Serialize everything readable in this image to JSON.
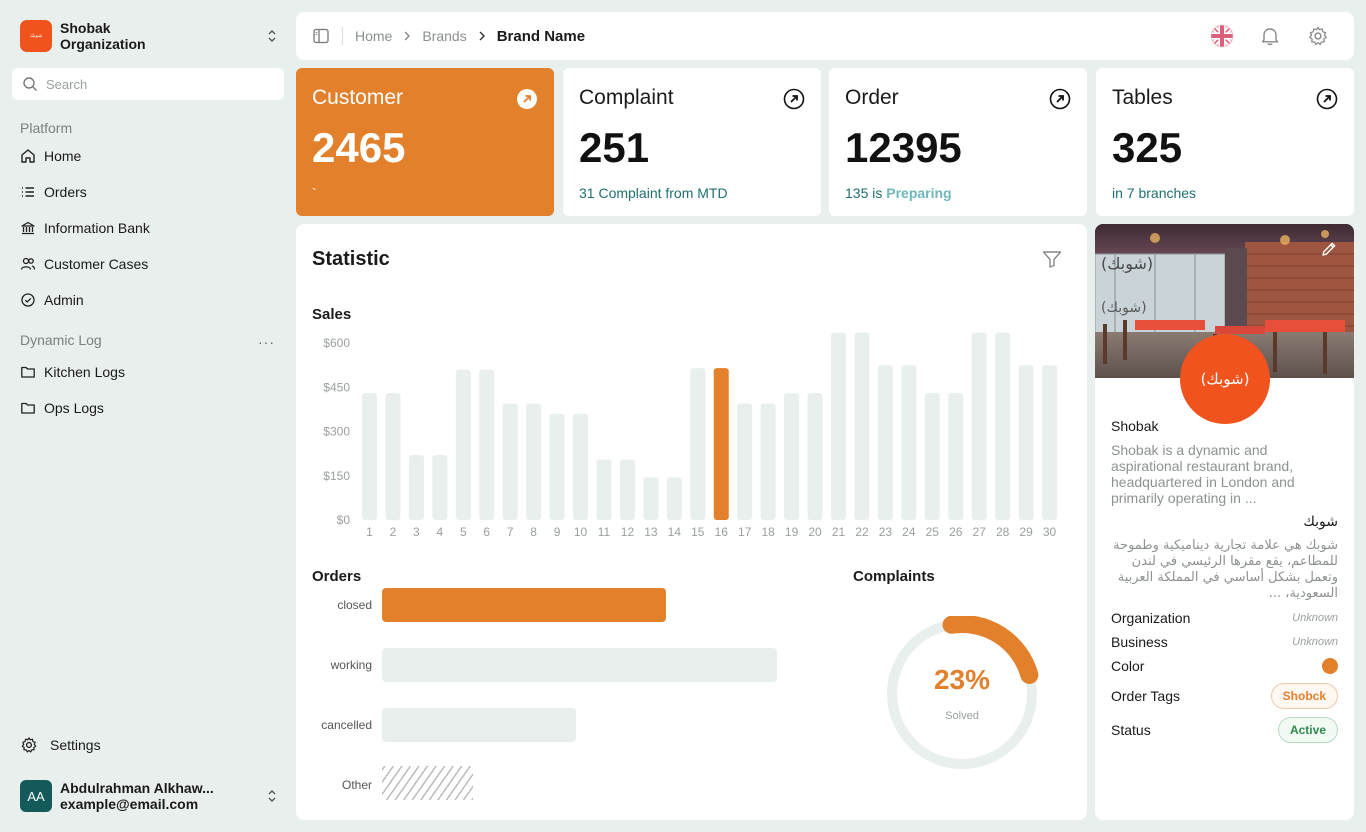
{
  "sidebar": {
    "org": {
      "logo_text": "شوبك",
      "name_line1": "Shobak",
      "name_line2": "Organization"
    },
    "search_placeholder": "Search",
    "platform_label": "Platform",
    "platform_items": [
      {
        "label": "Home",
        "icon": "home-icon"
      },
      {
        "label": "Orders",
        "icon": "list-icon"
      },
      {
        "label": "Information Bank",
        "icon": "bank-icon"
      },
      {
        "label": "Customer Cases",
        "icon": "users-icon"
      },
      {
        "label": "Admin",
        "icon": "check-circle-icon"
      }
    ],
    "dynamic_label": "Dynamic Log",
    "dynamic_more": "···",
    "dynamic_items": [
      {
        "label": "Kitchen Logs",
        "icon": "folder-icon"
      },
      {
        "label": "Ops Logs",
        "icon": "folder-icon"
      }
    ],
    "settings_label": "Settings",
    "user": {
      "initials": "AA",
      "name": "Abdulrahman Alkhaw...",
      "email": "example@email.com"
    }
  },
  "topbar": {
    "breadcrumb": [
      "Home",
      "Brands",
      "Brand Name"
    ]
  },
  "cards": [
    {
      "title": "Customer",
      "value": "2465",
      "sub": "`",
      "active": true
    },
    {
      "title": "Complaint",
      "value": "251",
      "sub": "31 Complaint from MTD"
    },
    {
      "title": "Order",
      "value": "12395",
      "sub_pre": "135 is ",
      "sub_hl": "Preparing"
    },
    {
      "title": "Tables",
      "value": "325",
      "sub": "in 7 branches"
    }
  ],
  "statistic": {
    "title": "Statistic",
    "sales_title": "Sales",
    "orders_title": "Orders",
    "complaints_title": "Complaints",
    "orders": [
      {
        "label": "closed",
        "value": 72,
        "style": "primary"
      },
      {
        "label": "working",
        "value": 100,
        "style": "neutral"
      },
      {
        "label": "cancelled",
        "value": 49,
        "style": "neutral"
      },
      {
        "label": "Other",
        "value": 23,
        "style": "hatch"
      }
    ],
    "complaints": {
      "percent_label": "23%",
      "fraction": 0.23,
      "caption": "Solved"
    }
  },
  "chart_data": {
    "type": "bar",
    "title": "Sales",
    "categories": [
      "1",
      "2",
      "3",
      "4",
      "5",
      "6",
      "7",
      "8",
      "9",
      "10",
      "11",
      "12",
      "13",
      "14",
      "15",
      "16",
      "17",
      "18",
      "19",
      "20",
      "21",
      "22",
      "23",
      "24",
      "25",
      "26",
      "27",
      "28",
      "29",
      "30"
    ],
    "values": [
      430,
      430,
      220,
      220,
      510,
      510,
      395,
      395,
      360,
      360,
      205,
      205,
      145,
      145,
      515,
      515,
      395,
      395,
      430,
      430,
      635,
      635,
      525,
      525,
      430,
      430,
      635,
      635,
      525,
      525
    ],
    "highlight_index": 15,
    "yticks": [
      "$0",
      "$150",
      "$300",
      "$450",
      "$600"
    ],
    "ylim": [
      0,
      600
    ],
    "colors": {
      "bar": "#e9efec",
      "highlight": "#e2802c"
    }
  },
  "brand": {
    "name": "Shobak",
    "description": "Shobak is a dynamic and aspirational restaurant brand, headquartered in London and primarily operating in ...",
    "name_ar": "شوبك",
    "description_ar": "شوبك هي علامة تجارية ديناميكية وطموحة للمطاعم، يقع مقرها الرئيسي في لندن وتعمل بشكل أساسي في المملكة العربية السعودية، ...",
    "logo_text": "(شوبك)",
    "fields": {
      "organization": {
        "label": "Organization",
        "value": "Unknown"
      },
      "business": {
        "label": "Business",
        "value": "Unknown"
      },
      "color": {
        "label": "Color",
        "value": "#e2802c"
      },
      "order_tags": {
        "label": "Order Tags",
        "value": "Shobck"
      },
      "status": {
        "label": "Status",
        "value": "Active"
      }
    }
  },
  "colors": {
    "accent": "#e2802c",
    "brand": "#f0531e",
    "teal": "#1f6f73"
  }
}
